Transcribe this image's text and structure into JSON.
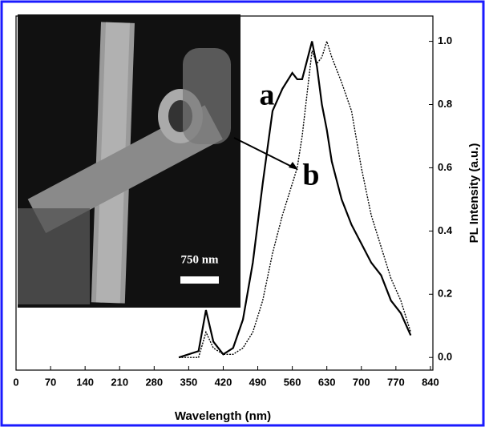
{
  "chart_data": {
    "type": "line",
    "x_label": "Wavelength (nm)",
    "y_label": "PL Intensity (a.u.)",
    "annotations": [
      "a",
      "b"
    ],
    "inset_scale_label": "750 nm",
    "x": [
      330,
      370,
      385,
      400,
      420,
      440,
      460,
      480,
      500,
      520,
      540,
      560,
      570,
      580,
      600,
      610,
      620,
      630,
      640,
      660,
      680,
      700,
      720,
      740,
      760,
      780,
      800
    ],
    "series": [
      {
        "name": "a",
        "color": "#000000",
        "dash": "solid",
        "values": [
          0,
          0.02,
          0.15,
          0.05,
          0.01,
          0.03,
          0.12,
          0.3,
          0.55,
          0.78,
          0.85,
          0.9,
          0.88,
          0.88,
          1.0,
          0.92,
          0.8,
          0.72,
          0.62,
          0.5,
          0.42,
          0.36,
          0.3,
          0.26,
          0.18,
          0.14,
          0.07
        ]
      },
      {
        "name": "b",
        "color": "#000000",
        "dash": "dotted",
        "values": [
          0,
          0.0,
          0.08,
          0.03,
          0.01,
          0.01,
          0.03,
          0.08,
          0.18,
          0.33,
          0.45,
          0.55,
          0.6,
          0.7,
          0.97,
          0.93,
          0.95,
          1.0,
          0.95,
          0.87,
          0.78,
          0.6,
          0.45,
          0.35,
          0.25,
          0.18,
          0.08
        ]
      }
    ],
    "xlim": [
      0,
      845
    ],
    "ylim": [
      -0.04,
      1.08
    ],
    "xticks": [
      0,
      70,
      140,
      210,
      280,
      350,
      420,
      490,
      560,
      630,
      700,
      770,
      840
    ],
    "yticks": [
      {
        "value": 0,
        "label": "0.0"
      },
      0.2,
      0.4,
      0.6,
      0.8,
      {
        "value": 1,
        "label": "1.0"
      }
    ]
  }
}
